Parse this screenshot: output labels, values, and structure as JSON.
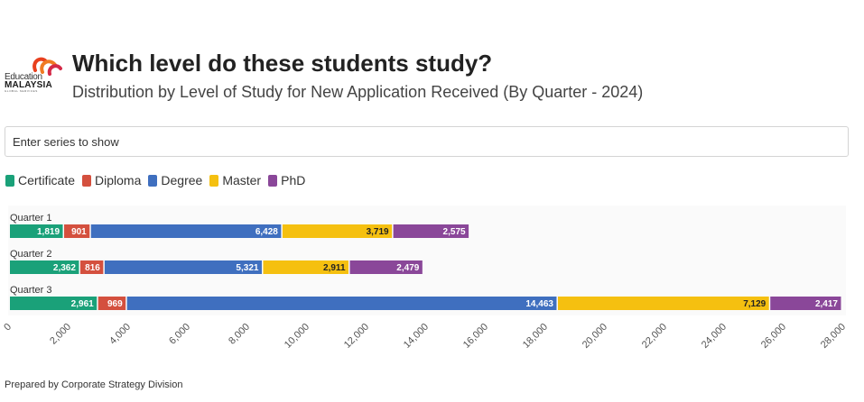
{
  "logo": {
    "line1": "Education",
    "line2": "MALAYSIA",
    "line3": "GLOBAL SERVICES"
  },
  "header": {
    "title": "Which level do these students study?",
    "subtitle": "Distribution by Level of Study for New Application Received (By Quarter - 2024)"
  },
  "search": {
    "placeholder": "Enter series to show"
  },
  "footer": {
    "text": "Prepared by Corporate Strategy Division"
  },
  "chart_data": {
    "type": "bar",
    "orientation": "horizontal",
    "stacked": true,
    "categories": [
      "Quarter 1",
      "Quarter 2",
      "Quarter 3"
    ],
    "series": [
      {
        "name": "Certificate",
        "color": "#1aa179",
        "values": [
          1819,
          2362,
          2961
        ],
        "labels": [
          "1,819",
          "2,362",
          "2,961"
        ]
      },
      {
        "name": "Diploma",
        "color": "#d4503e",
        "values": [
          901,
          816,
          969
        ],
        "labels": [
          "901",
          "816",
          "969"
        ]
      },
      {
        "name": "Degree",
        "color": "#3f6fbf",
        "values": [
          6428,
          5321,
          14463
        ],
        "labels": [
          "6,428",
          "5,321",
          "14,463"
        ]
      },
      {
        "name": "Master",
        "color": "#f5c010",
        "values": [
          3719,
          2911,
          7129
        ],
        "labels": [
          "3,719",
          "2,911",
          "7,129"
        ]
      },
      {
        "name": "PhD",
        "color": "#8a4799",
        "values": [
          2575,
          2479,
          2417
        ],
        "labels": [
          "2,575",
          "2,479",
          "2,417"
        ]
      }
    ],
    "xlim": [
      0,
      28000
    ],
    "xticks": [
      "0",
      "2,000",
      "4,000",
      "6,000",
      "8,000",
      "10,000",
      "12,000",
      "14,000",
      "16,000",
      "18,000",
      "20,000",
      "22,000",
      "24,000",
      "26,000",
      "28,000"
    ],
    "xtick_values": [
      0,
      2000,
      4000,
      6000,
      8000,
      10000,
      12000,
      14000,
      16000,
      18000,
      20000,
      22000,
      24000,
      26000,
      28000
    ],
    "legend_position": "top-left",
    "grid": false
  }
}
